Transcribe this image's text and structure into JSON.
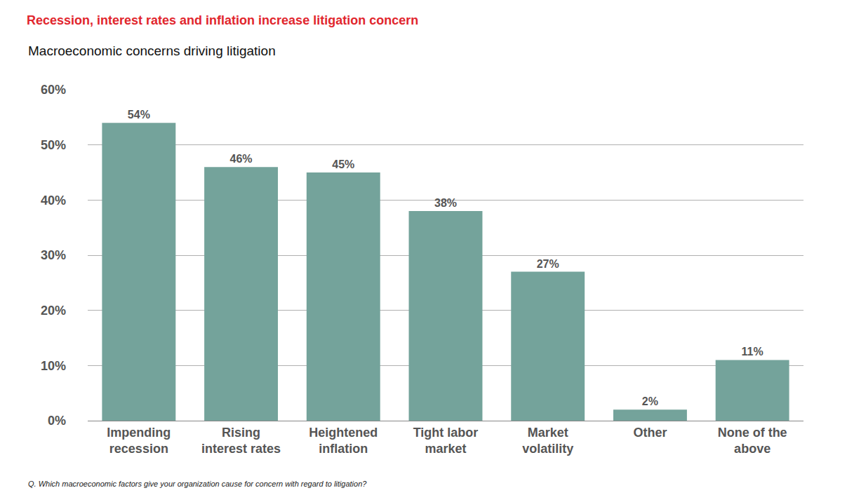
{
  "chart_data": {
    "type": "bar",
    "title": "Recession, interest rates and inflation increase litigation concern",
    "subtitle": "Macroeconomic concerns driving litigation",
    "annotations": [
      "Q. Which macroeconomic factors give your organization cause for concern with regard to litigation?"
    ],
    "categories": [
      "Impending recession",
      "Rising interest rates",
      "Heightened inflation",
      "Tight labor market",
      "Market volatility",
      "Other",
      "None of the above"
    ],
    "values": [
      54,
      46,
      45,
      38,
      27,
      2,
      11
    ],
    "value_labels": [
      "54%",
      "46%",
      "45%",
      "38%",
      "27%",
      "2%",
      "11%"
    ],
    "data_labels": true,
    "color": "#74a39b",
    "ylim": [
      0,
      60
    ],
    "yticks": [
      {
        "value": 0,
        "label": "0%"
      },
      {
        "value": 10,
        "label": "10%"
      },
      {
        "value": 20,
        "label": "20%"
      },
      {
        "value": 30,
        "label": "30%"
      },
      {
        "value": 40,
        "label": "40%"
      },
      {
        "value": 50,
        "label": "50%"
      },
      {
        "value": 60,
        "label": "60%"
      }
    ],
    "grid": true
  }
}
